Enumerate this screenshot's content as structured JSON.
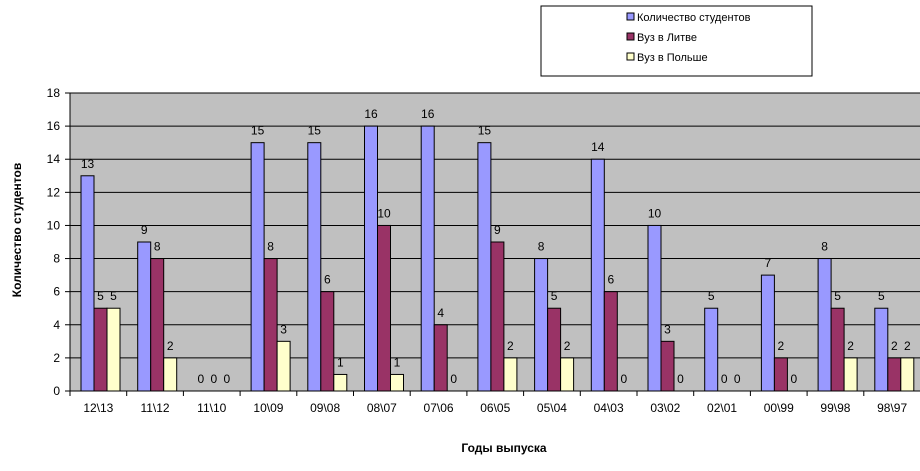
{
  "chart_data": {
    "type": "bar",
    "xlabel": "Годы выпуска",
    "ylabel": "Количество студентов",
    "ylim": [
      0,
      18
    ],
    "ytick_step": 2,
    "grid": true,
    "legend_position": "top-right",
    "categories": [
      "12\\13",
      "11\\12",
      "11\\10",
      "10\\09",
      "09\\08",
      "08\\07",
      "07\\06",
      "06\\05",
      "05\\04",
      "04\\03",
      "03\\02",
      "02\\01",
      "00\\99",
      "99\\98",
      "98\\97"
    ],
    "series": [
      {
        "name": "Количество студентов",
        "color": "#9999ff",
        "values": [
          13,
          9,
          0,
          15,
          15,
          16,
          16,
          15,
          8,
          14,
          10,
          5,
          7,
          8,
          5
        ]
      },
      {
        "name": "Вуз в Литве",
        "color": "#993366",
        "values": [
          5,
          8,
          0,
          8,
          6,
          10,
          4,
          9,
          5,
          6,
          3,
          0,
          2,
          5,
          2
        ]
      },
      {
        "name": "Вуз в Польше",
        "color": "#ffffcc",
        "values": [
          5,
          2,
          0,
          3,
          1,
          1,
          0,
          2,
          2,
          0,
          0,
          0,
          0,
          2,
          2
        ]
      }
    ],
    "plot_background": "#c0c0c0"
  }
}
